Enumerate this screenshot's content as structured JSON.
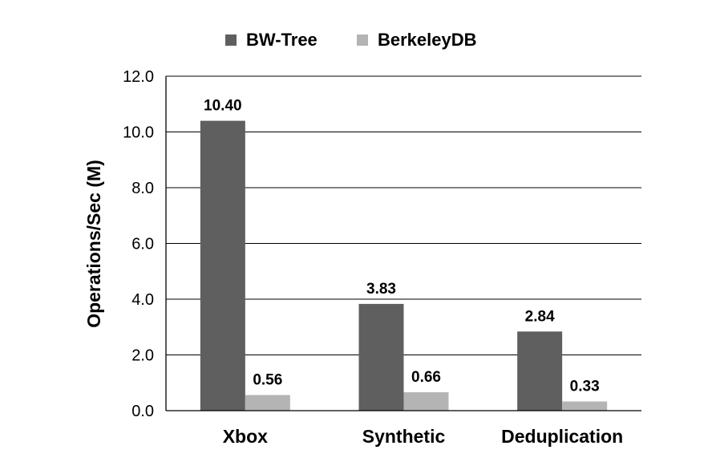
{
  "chart_data": {
    "type": "bar",
    "title": "",
    "xlabel": "",
    "ylabel": "Operations/Sec (M)",
    "categories": [
      "Xbox",
      "Synthetic",
      "Deduplication"
    ],
    "series": [
      {
        "name": "BW-Tree",
        "values": [
          10.4,
          3.83,
          2.84
        ],
        "labels": [
          "10.40",
          "3.83",
          "2.84"
        ],
        "color": "#5f5f5f"
      },
      {
        "name": "BerkeleyDB",
        "values": [
          0.56,
          0.66,
          0.33
        ],
        "labels": [
          "0.56",
          "0.66",
          "0.33"
        ],
        "color": "#b4b4b4"
      }
    ],
    "ylim": [
      0,
      12
    ],
    "yticks": [
      "0.0",
      "2.0",
      "4.0",
      "6.0",
      "8.0",
      "10.0",
      "12.0"
    ],
    "grid": true,
    "legend_position": "top-center"
  }
}
